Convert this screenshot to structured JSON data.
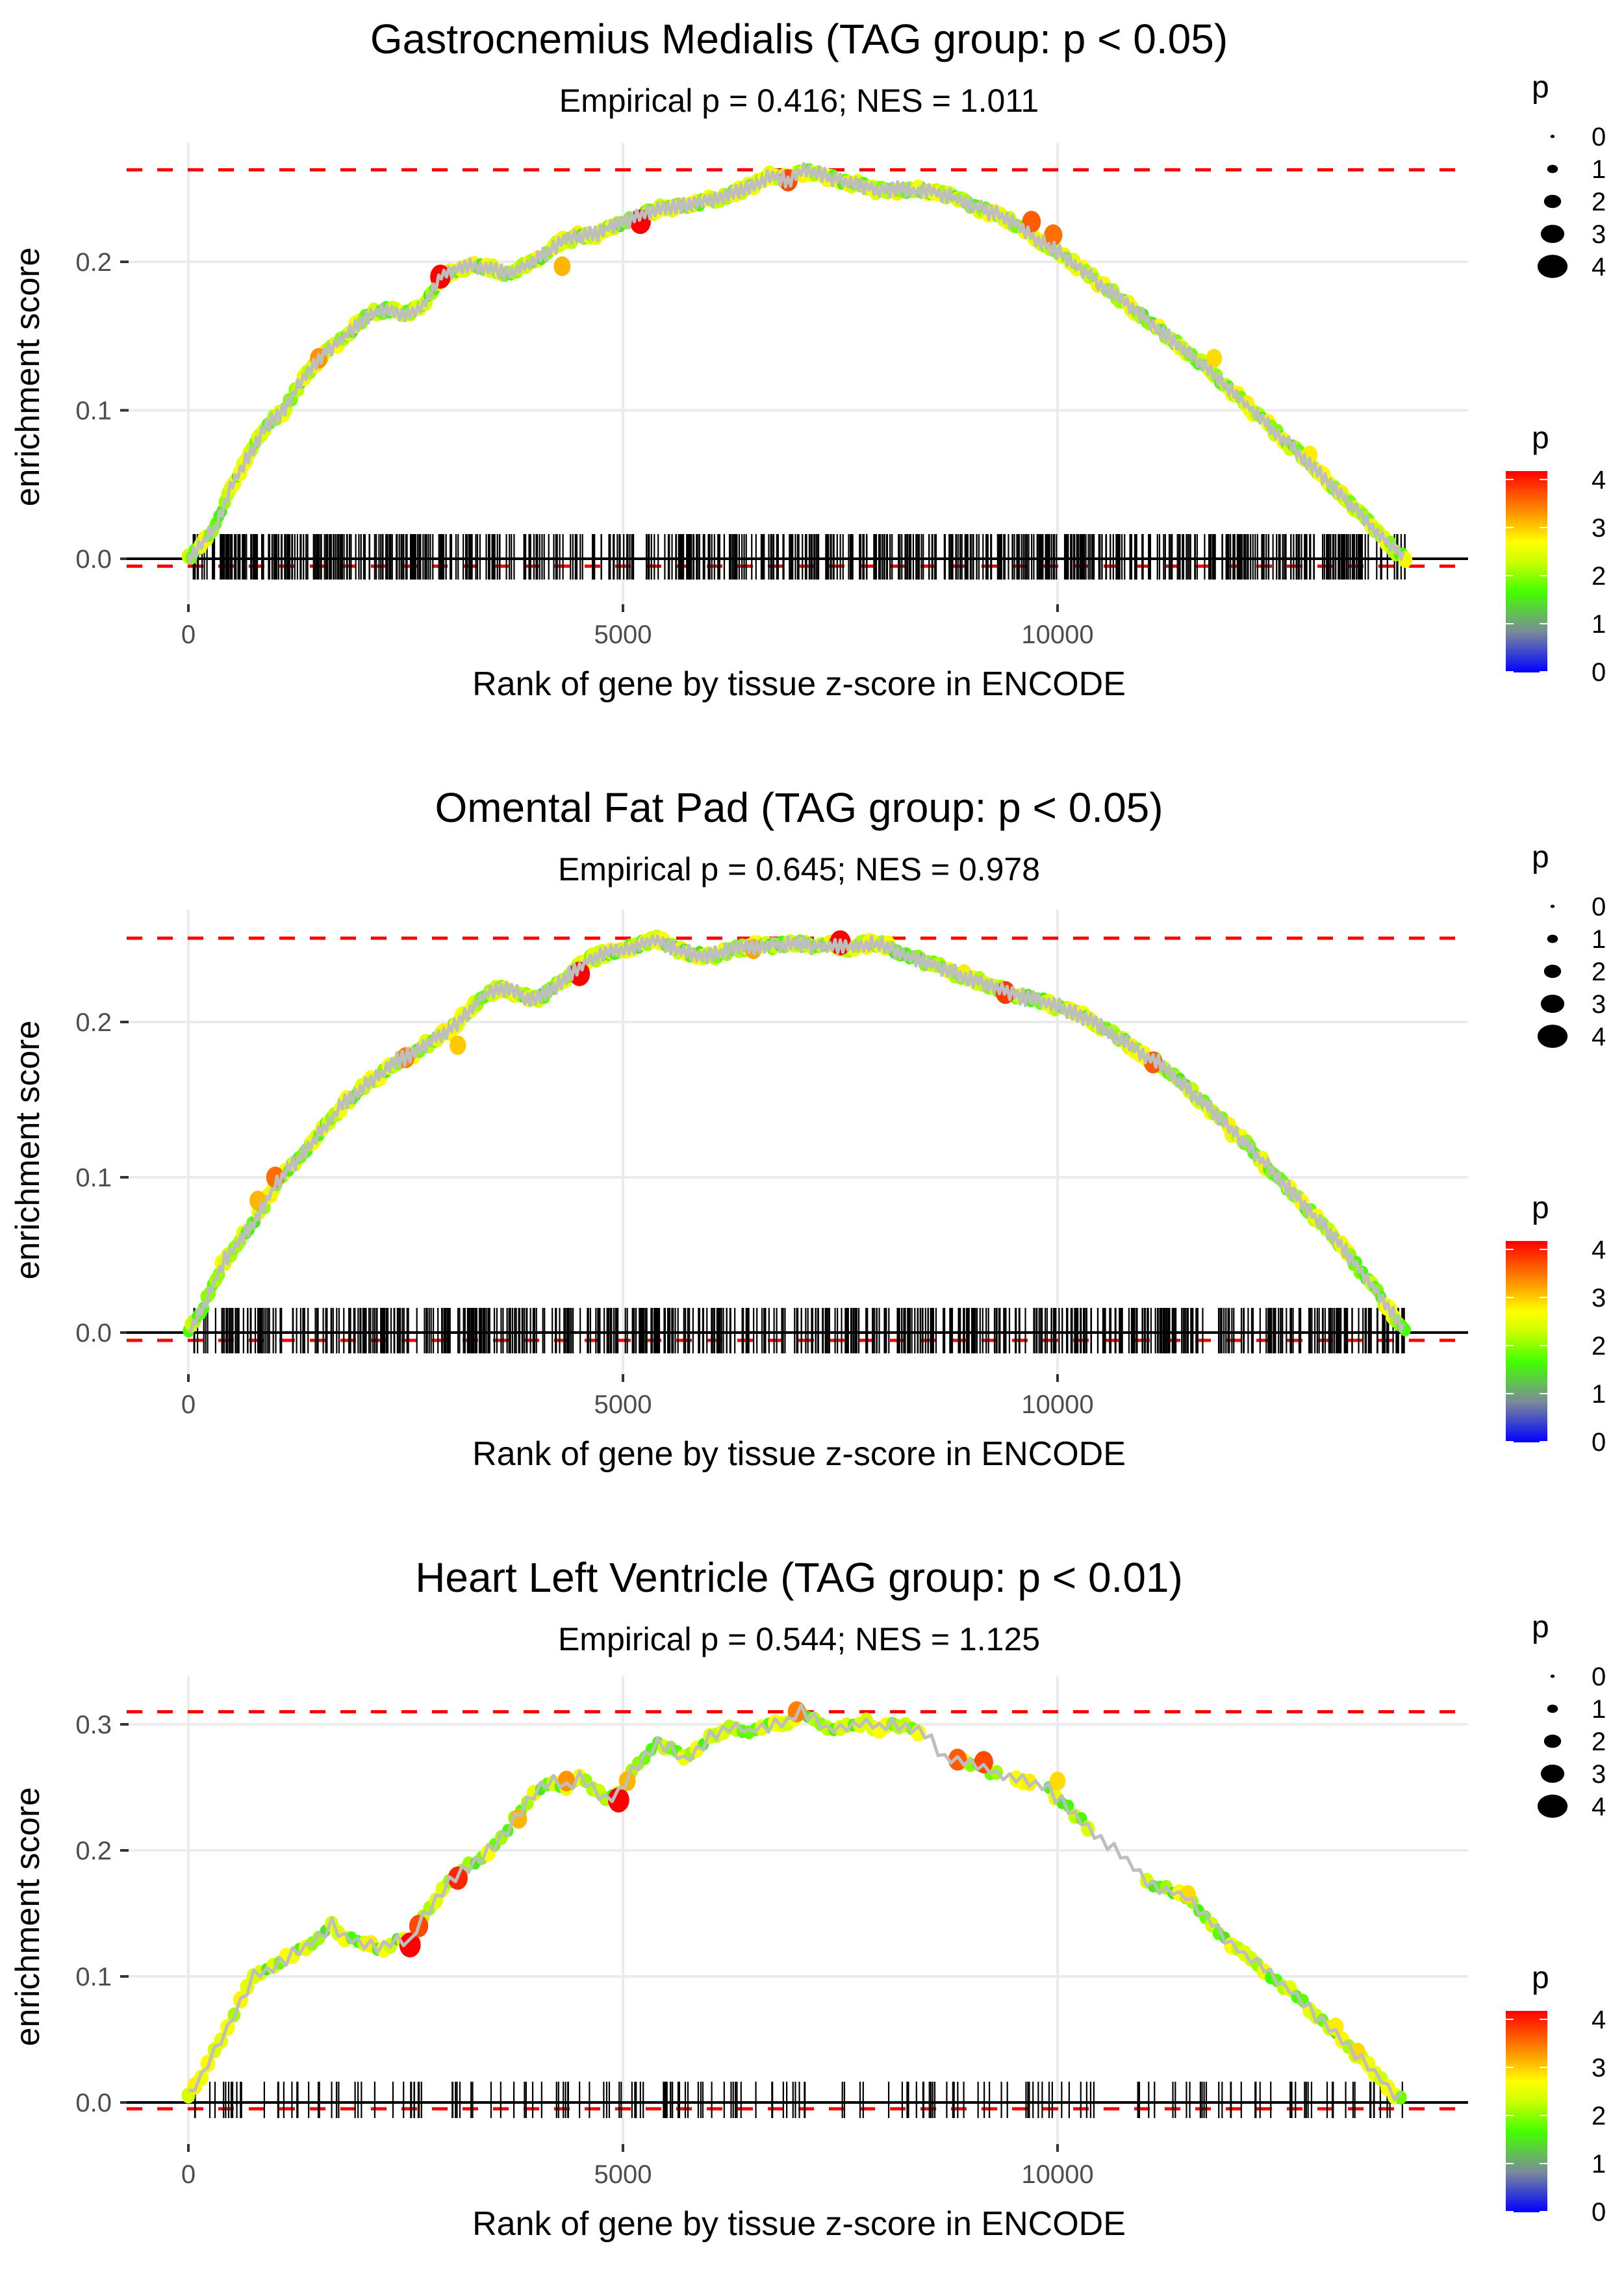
{
  "chart_data": [
    {
      "type": "line",
      "title": "Gastrocnemius Medialis (TAG group: p < 0.05)",
      "subtitle": "Empirical p = 0.416; NES = 1.011",
      "xlabel": "Rank of gene by tissue z-score in ENCODE",
      "ylabel": "enrichment score",
      "xlim": [
        -500,
        14700
      ],
      "ylim": [
        -0.02,
        0.27
      ],
      "x_ticks": [
        0,
        5000,
        10000
      ],
      "x_tick_labels": [
        "0",
        "5000",
        "10000"
      ],
      "y_ticks": [
        0.0,
        0.1,
        0.2
      ],
      "y_tick_labels": [
        "0.0",
        "0.1",
        "0.2"
      ],
      "grid": true,
      "max_es_line": 0.262,
      "min_es_line": -0.005,
      "rug_density": "dense",
      "rug_count": 700,
      "curve": {
        "x": [
          0,
          300,
          500,
          700,
          900,
          1100,
          1300,
          1500,
          1700,
          1900,
          2100,
          2300,
          2500,
          2700,
          2900,
          3100,
          3300,
          3500,
          3700,
          3900,
          4100,
          4300,
          4500,
          4700,
          4900,
          5100,
          5300,
          5500,
          5700,
          5900,
          6100,
          6300,
          6500,
          6700,
          6900,
          7100,
          7300,
          7500,
          7700,
          7900,
          8100,
          8300,
          8500,
          8700,
          8900,
          9100,
          9300,
          9500,
          9700,
          9900,
          10100,
          10300,
          10500,
          10700,
          10900,
          11100,
          11300,
          11500,
          11700,
          11900,
          12100,
          12300,
          12500,
          12700,
          12900,
          13100,
          13300,
          13500,
          13700,
          13900,
          14000
        ],
        "y": [
          0.0,
          0.02,
          0.05,
          0.07,
          0.09,
          0.1,
          0.12,
          0.135,
          0.145,
          0.155,
          0.165,
          0.168,
          0.165,
          0.17,
          0.19,
          0.196,
          0.197,
          0.195,
          0.192,
          0.198,
          0.205,
          0.214,
          0.217,
          0.219,
          0.225,
          0.228,
          0.234,
          0.237,
          0.238,
          0.24,
          0.243,
          0.247,
          0.252,
          0.258,
          0.255,
          0.262,
          0.258,
          0.255,
          0.252,
          0.249,
          0.249,
          0.248,
          0.248,
          0.245,
          0.241,
          0.236,
          0.232,
          0.226,
          0.218,
          0.21,
          0.203,
          0.194,
          0.185,
          0.176,
          0.167,
          0.158,
          0.148,
          0.139,
          0.129,
          0.118,
          0.108,
          0.097,
          0.086,
          0.075,
          0.064,
          0.052,
          0.041,
          0.029,
          0.017,
          0.005,
          0.0
        ]
      },
      "highlight_points": [
        {
          "x": 1500,
          "y": 0.135,
          "p": 3.2
        },
        {
          "x": 2900,
          "y": 0.19,
          "p": 4.0
        },
        {
          "x": 4300,
          "y": 0.197,
          "p": 3.0
        },
        {
          "x": 5200,
          "y": 0.227,
          "p": 4.1
        },
        {
          "x": 6900,
          "y": 0.255,
          "p": 3.6
        },
        {
          "x": 9700,
          "y": 0.227,
          "p": 3.5
        },
        {
          "x": 9950,
          "y": 0.218,
          "p": 3.4
        },
        {
          "x": 11800,
          "y": 0.135,
          "p": 2.8
        },
        {
          "x": 12900,
          "y": 0.07,
          "p": 2.7
        }
      ]
    },
    {
      "type": "line",
      "title": "Omental Fat Pad (TAG group: p < 0.05)",
      "subtitle": "Empirical p = 0.645; NES = 0.978",
      "xlabel": "Rank of gene by tissue z-score in ENCODE",
      "ylabel": "enrichment score",
      "xlim": [
        -500,
        14700
      ],
      "ylim": [
        -0.02,
        0.262
      ],
      "x_ticks": [
        0,
        5000,
        10000
      ],
      "x_tick_labels": [
        "0",
        "5000",
        "10000"
      ],
      "y_ticks": [
        0.0,
        0.1,
        0.2
      ],
      "y_tick_labels": [
        "0.0",
        "0.1",
        "0.2"
      ],
      "grid": true,
      "max_es_line": 0.254,
      "min_es_line": -0.005,
      "rug_density": "dense",
      "rug_count": 620,
      "curve": {
        "x": [
          0,
          200,
          400,
          600,
          800,
          1000,
          1200,
          1400,
          1600,
          1800,
          2000,
          2200,
          2400,
          2600,
          2800,
          3000,
          3200,
          3400,
          3600,
          3800,
          4000,
          4200,
          4400,
          4600,
          4800,
          5000,
          5200,
          5400,
          5600,
          5800,
          6000,
          6200,
          6400,
          6600,
          6800,
          7000,
          7200,
          7400,
          7600,
          7800,
          8000,
          8200,
          8400,
          8600,
          8800,
          9000,
          9200,
          9400,
          9600,
          9800,
          10000,
          10200,
          10400,
          10600,
          10800,
          11000,
          11200,
          11400,
          11600,
          11800,
          12000,
          12200,
          12400,
          12600,
          12800,
          13000,
          13200,
          13400,
          13600,
          13800,
          14000
        ],
        "y": [
          0.0,
          0.02,
          0.045,
          0.06,
          0.075,
          0.095,
          0.108,
          0.12,
          0.135,
          0.148,
          0.158,
          0.165,
          0.175,
          0.18,
          0.188,
          0.195,
          0.205,
          0.217,
          0.222,
          0.218,
          0.214,
          0.222,
          0.231,
          0.24,
          0.244,
          0.246,
          0.25,
          0.253,
          0.247,
          0.244,
          0.242,
          0.246,
          0.248,
          0.249,
          0.25,
          0.251,
          0.249,
          0.249,
          0.248,
          0.25,
          0.25,
          0.244,
          0.24,
          0.236,
          0.232,
          0.228,
          0.224,
          0.22,
          0.216,
          0.214,
          0.21,
          0.206,
          0.2,
          0.193,
          0.186,
          0.179,
          0.172,
          0.162,
          0.152,
          0.142,
          0.13,
          0.12,
          0.108,
          0.096,
          0.084,
          0.072,
          0.06,
          0.046,
          0.032,
          0.016,
          0.0
        ]
      },
      "highlight_points": [
        {
          "x": 800,
          "y": 0.085,
          "p": 3.0
        },
        {
          "x": 1000,
          "y": 0.1,
          "p": 3.4
        },
        {
          "x": 2500,
          "y": 0.177,
          "p": 3.3
        },
        {
          "x": 3100,
          "y": 0.185,
          "p": 2.9
        },
        {
          "x": 4500,
          "y": 0.231,
          "p": 4.1
        },
        {
          "x": 6500,
          "y": 0.247,
          "p": 3.1
        },
        {
          "x": 7500,
          "y": 0.251,
          "p": 4.2
        },
        {
          "x": 9400,
          "y": 0.219,
          "p": 3.7
        },
        {
          "x": 11100,
          "y": 0.174,
          "p": 3.5
        }
      ]
    },
    {
      "type": "line",
      "title": "Heart Left Ventricle (TAG group: p < 0.01)",
      "subtitle": "Empirical p = 0.544; NES = 1.125",
      "xlabel": "Rank of gene by tissue z-score in ENCODE",
      "ylabel": "enrichment score",
      "xlim": [
        -500,
        14700
      ],
      "ylim": [
        -0.02,
        0.32
      ],
      "x_ticks": [
        0,
        5000,
        10000
      ],
      "x_tick_labels": [
        "0",
        "5000",
        "10000"
      ],
      "y_ticks": [
        0.0,
        0.1,
        0.2,
        0.3
      ],
      "y_tick_labels": [
        "0.0",
        "0.1",
        "0.2",
        "0.3"
      ],
      "grid": true,
      "max_es_line": 0.31,
      "min_es_line": -0.005,
      "rug_density": "sparse",
      "rug_count": 190,
      "curve": {
        "x": [
          0,
          150,
          300,
          450,
          600,
          750,
          900,
          1050,
          1200,
          1350,
          1500,
          1650,
          1800,
          2000,
          2200,
          2400,
          2550,
          2700,
          2850,
          3000,
          3150,
          3300,
          3450,
          3600,
          3750,
          3900,
          4050,
          4200,
          4350,
          4500,
          4650,
          4800,
          4950,
          5100,
          5250,
          5400,
          5550,
          5700,
          5850,
          6000,
          6150,
          6300,
          6450,
          6600,
          6750,
          6900,
          7050,
          7200,
          7350,
          7500,
          7650,
          7800,
          7950,
          8100,
          8300,
          8500,
          8700,
          8900,
          9100,
          9300,
          9500,
          9700,
          9900,
          10100,
          10300,
          10700,
          11100,
          11300,
          11500,
          11700,
          11900,
          12100,
          12300,
          12500,
          12700,
          12900,
          13100,
          13300,
          13500,
          13700,
          13900,
          14000
        ],
        "y": [
          0.005,
          0.02,
          0.04,
          0.06,
          0.08,
          0.1,
          0.105,
          0.11,
          0.118,
          0.124,
          0.13,
          0.142,
          0.13,
          0.128,
          0.12,
          0.13,
          0.125,
          0.148,
          0.16,
          0.175,
          0.185,
          0.19,
          0.2,
          0.21,
          0.225,
          0.238,
          0.25,
          0.255,
          0.25,
          0.258,
          0.25,
          0.24,
          0.245,
          0.262,
          0.275,
          0.285,
          0.282,
          0.272,
          0.28,
          0.29,
          0.295,
          0.298,
          0.294,
          0.298,
          0.3,
          0.302,
          0.31,
          0.305,
          0.296,
          0.298,
          0.3,
          0.302,
          0.296,
          0.3,
          0.298,
          0.292,
          0.272,
          0.27,
          0.268,
          0.26,
          0.256,
          0.255,
          0.248,
          0.235,
          0.222,
          0.198,
          0.172,
          0.168,
          0.162,
          0.148,
          0.132,
          0.12,
          0.11,
          0.098,
          0.088,
          0.074,
          0.06,
          0.048,
          0.034,
          0.02,
          0.005,
          0.0
        ]
      },
      "highlight_points": [
        {
          "x": 2550,
          "y": 0.125,
          "p": 4.2
        },
        {
          "x": 2650,
          "y": 0.14,
          "p": 3.6
        },
        {
          "x": 3100,
          "y": 0.178,
          "p": 3.8
        },
        {
          "x": 3800,
          "y": 0.225,
          "p": 3.0
        },
        {
          "x": 4350,
          "y": 0.255,
          "p": 3.2
        },
        {
          "x": 4950,
          "y": 0.24,
          "p": 4.2
        },
        {
          "x": 5050,
          "y": 0.255,
          "p": 3.0
        },
        {
          "x": 7000,
          "y": 0.31,
          "p": 3.3
        },
        {
          "x": 8850,
          "y": 0.272,
          "p": 3.5
        },
        {
          "x": 9150,
          "y": 0.27,
          "p": 3.6
        },
        {
          "x": 10000,
          "y": 0.255,
          "p": 2.8
        },
        {
          "x": 11500,
          "y": 0.165,
          "p": 2.8
        },
        {
          "x": 13200,
          "y": 0.06,
          "p": 2.7
        },
        {
          "x": 13450,
          "y": 0.04,
          "p": 2.8
        }
      ]
    }
  ],
  "legend": {
    "size_title": "p",
    "size_labels": [
      "0",
      "1",
      "2",
      "3",
      "4"
    ],
    "color_title": "p",
    "color_labels": [
      "4",
      "3",
      "2",
      "1",
      "0"
    ],
    "color_scale": [
      "#0000ff",
      "#7a8a99",
      "#44ff00",
      "#ccff00",
      "#ffff00",
      "#ff8000",
      "#ff0000"
    ]
  },
  "colors": {
    "threshold_line": "#ff0000",
    "es_path": "#bebebe",
    "zero_line": "#000000",
    "rug": "#000000",
    "grid": "#ebebeb"
  }
}
